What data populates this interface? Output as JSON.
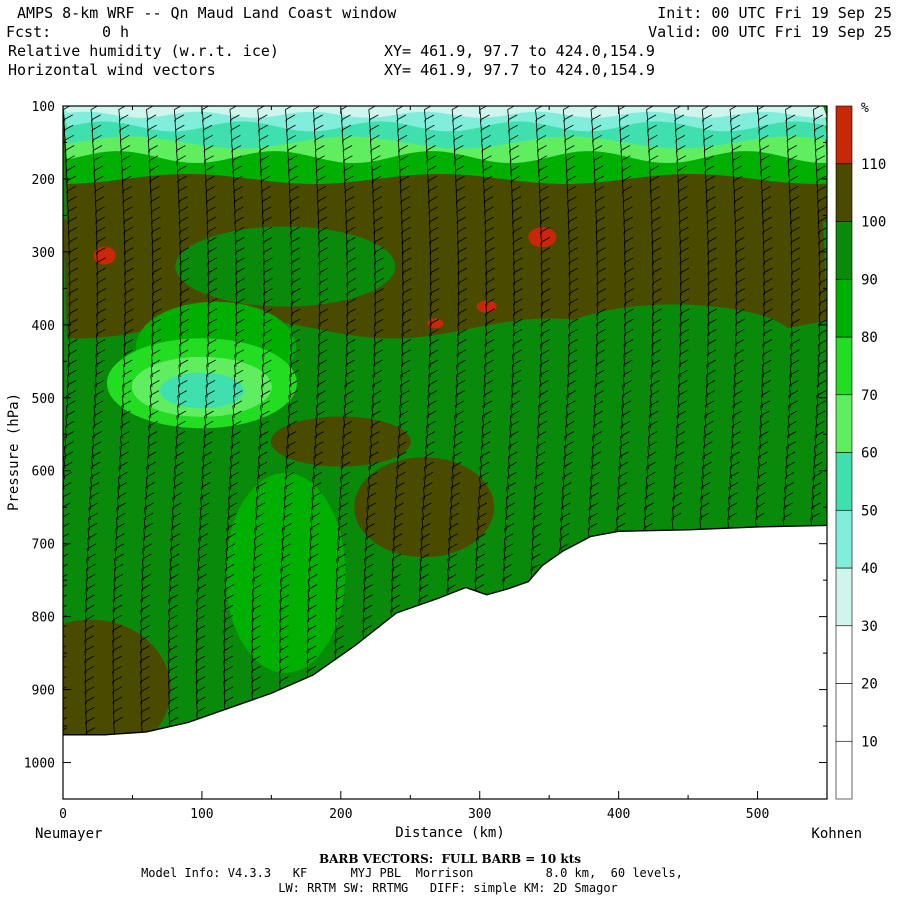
{
  "header": {
    "title": "AMPS 8-km WRF -- Qn Maud Land Coast window",
    "fcst_label": "Fcst:",
    "fcst_value": "0 h",
    "init": "Init: 00 UTC Fri 19 Sep 25",
    "valid": "Valid: 00 UTC Fri 19 Sep 25",
    "field1": "Relative humidity (w.r.t. ice)",
    "field2": "Horizontal wind vectors",
    "xy1": "XY= 461.9, 97.7 to 424.0,154.9",
    "xy2": "XY= 461.9, 97.7 to 424.0,154.9"
  },
  "footer": {
    "barb_note": "BARB VECTORS:  FULL BARB = 10 kts",
    "model_info": "Model Info: V4.3.3   KF      MYJ PBL  Morrison          8.0 km,  60 levels,",
    "physics": "LW: RRTM SW: RRTMG   DIFF: simple KM: 2D Smagor"
  },
  "chart_data": {
    "type": "heatmap",
    "title": "Relative humidity (w.r.t. ice)",
    "xlabel": "Distance (km)",
    "ylabel": "Pressure (hPa)",
    "xlim": [
      0,
      550
    ],
    "ylim": [
      1050,
      100
    ],
    "y_scale": "linear, inverted",
    "xticks": [
      0,
      100,
      200,
      300,
      400,
      500
    ],
    "yticks": [
      100,
      200,
      300,
      400,
      500,
      600,
      700,
      800,
      900,
      1000
    ],
    "x_start_label": "Neumayer",
    "x_end_label": "Kohnen",
    "colorbar_unit": "%",
    "colorbar_levels": [
      10,
      20,
      30,
      40,
      50,
      60,
      70,
      80,
      90,
      100,
      110
    ],
    "colorbar_colors": [
      "#ffffff",
      "#ffffff",
      "#ffffff",
      "#cff5ec",
      "#80eedb",
      "#3fe0ae",
      "#60ee60",
      "#22dd22",
      "#00b000",
      "#0a8a0a",
      "#4b4b00",
      "#c82808"
    ],
    "terrain_surface_hPa": {
      "x_km": [
        0,
        30,
        60,
        90,
        120,
        150,
        180,
        210,
        240,
        270,
        290,
        305,
        320,
        335,
        345,
        360,
        380,
        400,
        450,
        500,
        550
      ],
      "p_hPa": [
        962,
        962,
        958,
        945,
        925,
        905,
        880,
        840,
        795,
        775,
        760,
        770,
        762,
        752,
        730,
        710,
        690,
        683,
        681,
        677,
        675
      ]
    },
    "rh_features": [
      {
        "name": "upper moist band",
        "x_range_km": [
          0,
          550
        ],
        "p_range_hPa": [
          100,
          250
        ],
        "rh_percent": "30-80"
      },
      {
        "name": "supersaturated layer",
        "x_range_km": [
          0,
          550
        ],
        "p_range_hPa": [
          200,
          400
        ],
        "rh_percent": "100-110"
      },
      {
        "name": "dry pocket",
        "x_center_km": 100,
        "p_center_hPa": 490,
        "rh_percent": "50-60"
      },
      {
        "name": "max RH patch",
        "x_center_km": 345,
        "p_center_hPa": 280,
        "rh_percent": ">110"
      },
      {
        "name": "max RH patch",
        "x_center_km": 30,
        "p_center_hPa": 305,
        "rh_percent": ">110"
      },
      {
        "name": "max RH patch",
        "x_center_km": 305,
        "p_center_hPa": 375,
        "rh_percent": ">110"
      },
      {
        "name": "max RH patch",
        "x_center_km": 268,
        "p_center_hPa": 398,
        "rh_percent": ">110"
      }
    ],
    "wind_barbs": {
      "x_spacing_km": 20,
      "full_barb_kts": 10,
      "dominant_direction": "easterly/north-easterly"
    }
  }
}
